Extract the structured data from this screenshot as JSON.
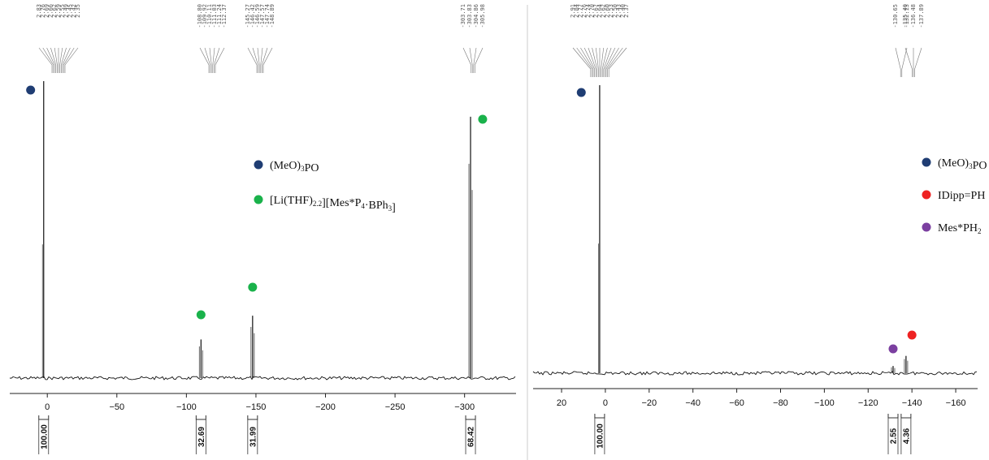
{
  "chart_data": [
    {
      "type": "line",
      "title": "",
      "xlabel": "",
      "ylabel": "",
      "x_unit": "ppm",
      "xlim": [
        27,
        -337
      ],
      "x_reversed": true,
      "x_ticks": [
        0,
        -50,
        -100,
        -150,
        -200,
        -250,
        -300
      ],
      "x_tick_labels": [
        "0",
        "−50",
        "−100",
        "−150",
        "−200",
        "−250",
        "−300"
      ],
      "series": [
        {
          "peaks": [
            {
              "ppm": 2.6,
              "rel_height": 1.0,
              "color": "#1f3d73"
            },
            {
              "ppm": -110.5,
              "rel_height": 0.13
            },
            {
              "ppm": -147.6,
              "rel_height": 0.21
            },
            {
              "ppm": -304.3,
              "rel_height": 0.88
            }
          ]
        }
      ],
      "peak_label_groups": [
        {
          "labels": [
            "2.83",
            "2.76",
            "2.69",
            "2.66",
            "2.62",
            "2.59",
            "2.55",
            "2.49",
            "2.45",
            "2.42",
            "2.35"
          ]
        },
        {
          "labels": [
            "-108.80",
            "-109.92",
            "-110.11",
            "-111.03",
            "-111.24",
            "-112.37"
          ]
        },
        {
          "labels": [
            "-145.27",
            "-146.42",
            "-146.59",
            "-147.57",
            "-147.74",
            "-148.89"
          ]
        },
        {
          "labels": [
            "-303.71",
            "-303.83",
            "-304.86",
            "-305.98"
          ]
        }
      ],
      "integrals": [
        {
          "ppm": 2.6,
          "value": "100.00"
        },
        {
          "ppm": -110.5,
          "value": "32.69"
        },
        {
          "ppm": -147.6,
          "value": "31.99"
        },
        {
          "ppm": -304.3,
          "value": "68.42"
        }
      ],
      "legend": [
        {
          "label": "(MeO)",
          "sub": "3",
          "label2": "PO",
          "color": "#1f3d73"
        },
        {
          "label": "[Li(THF)",
          "sub": "2.2",
          "label2": "][Mes*P",
          "sub2": "4",
          "label3": "·BPh",
          "sub3": "3",
          "label4": "]",
          "color": "#1ab24b"
        }
      ],
      "markers": [
        {
          "ppm": 12,
          "color": "#1f3d73"
        },
        {
          "ppm": -110.5,
          "color": "#1ab24b"
        },
        {
          "ppm": -147.6,
          "color": "#1ab24b"
        },
        {
          "ppm": -313,
          "color": "#1ab24b"
        }
      ]
    },
    {
      "type": "line",
      "title": "",
      "xlabel": "",
      "ylabel": "",
      "x_unit": "ppm",
      "xlim": [
        33,
        -170
      ],
      "x_reversed": true,
      "x_ticks": [
        20,
        0,
        -20,
        -40,
        -60,
        -80,
        -100,
        -120,
        -140,
        -160
      ],
      "x_tick_labels": [
        "20",
        "0",
        "−20",
        "−40",
        "−60",
        "−80",
        "−100",
        "−120",
        "−140",
        "−160"
      ],
      "series": [
        {
          "peaks": [
            {
              "ppm": 2.6,
              "rel_height": 1.0
            },
            {
              "ppm": -131.4,
              "rel_height": 0.025
            },
            {
              "ppm": -137.3,
              "rel_height": 0.06
            }
          ]
        }
      ],
      "peak_label_groups": [
        {
          "labels": [
            "2.91",
            "2.84",
            "2.77",
            "2.76",
            "2.74",
            "2.70",
            "2.67",
            "2.64",
            "2.62",
            "2.60",
            "2.53",
            "2.50",
            "2.43",
            "2.40",
            "2.37"
          ]
        },
        {
          "labels": [
            "-130.65",
            "-132.13"
          ]
        },
        {
          "labels": [
            "-135.40",
            "-136.48",
            "-137.89"
          ]
        }
      ],
      "integrals": [
        {
          "ppm": 2.6,
          "value": "100.00"
        },
        {
          "ppm": -131.4,
          "value": "2.55"
        },
        {
          "ppm": -137.3,
          "value": "4.36"
        }
      ],
      "legend": [
        {
          "label": "(MeO)",
          "sub": "3",
          "label2": "PO",
          "color": "#1f3d73"
        },
        {
          "label": "IDipp=PH",
          "color": "#ee2222"
        },
        {
          "label": "Mes*PH",
          "sub": "2",
          "color": "#7b3fa0"
        }
      ],
      "markers": [
        {
          "ppm": 11,
          "color": "#1f3d73"
        },
        {
          "ppm": -131.4,
          "color": "#7b3fa0"
        },
        {
          "ppm": -140,
          "color": "#ee2222"
        }
      ]
    }
  ]
}
